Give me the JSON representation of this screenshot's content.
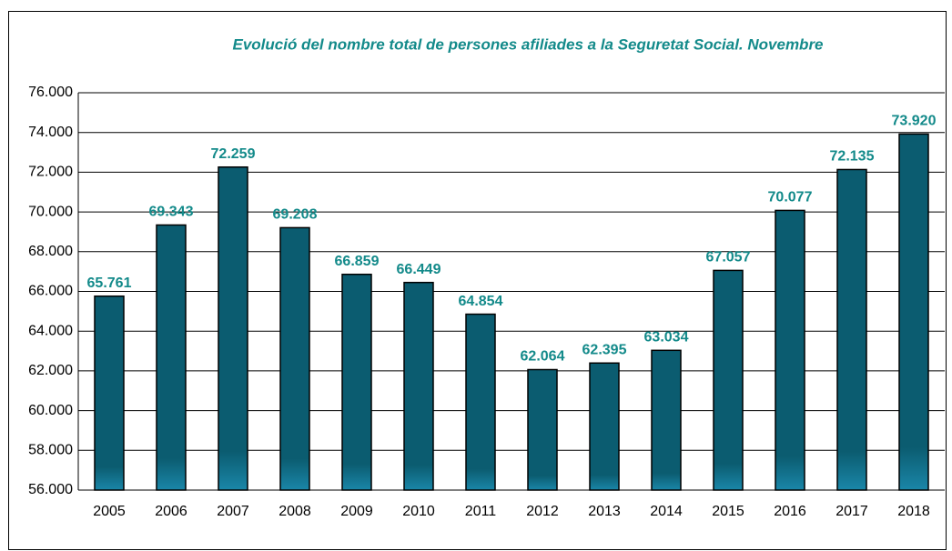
{
  "chart_data": {
    "type": "bar",
    "title": "Evolució del nombre total de persones afiliades a la Seguretat Social. Novembre",
    "categories": [
      "2005",
      "2006",
      "2007",
      "2008",
      "2009",
      "2010",
      "2011",
      "2012",
      "2013",
      "2014",
      "2015",
      "2016",
      "2017",
      "2018"
    ],
    "values": [
      65761,
      69343,
      72259,
      69208,
      66859,
      66449,
      64854,
      62064,
      62395,
      63034,
      67057,
      70077,
      72135,
      73920
    ],
    "value_labels": [
      "65.761",
      "69.343",
      "72.259",
      "69.208",
      "66.859",
      "66.449",
      "64.854",
      "62.064",
      "62.395",
      "63.034",
      "67.057",
      "70.077",
      "72.135",
      "73.920"
    ],
    "color": "#0b5c70",
    "label_color": "#138a8a",
    "ylim": [
      56000,
      76000
    ],
    "yticks": [
      {
        "value": 56000,
        "label": "56.000"
      },
      {
        "value": 58000,
        "label": "58.000"
      },
      {
        "value": 60000,
        "label": "60.000"
      },
      {
        "value": 62000,
        "label": "62.000"
      },
      {
        "value": 64000,
        "label": "64.000"
      },
      {
        "value": 66000,
        "label": "66.000"
      },
      {
        "value": 68000,
        "label": "68.000"
      },
      {
        "value": 70000,
        "label": "70.000"
      },
      {
        "value": 72000,
        "label": "72.000"
      },
      {
        "value": 74000,
        "label": "74.000"
      },
      {
        "value": 76000,
        "label": "76.000"
      }
    ],
    "grid": true
  }
}
